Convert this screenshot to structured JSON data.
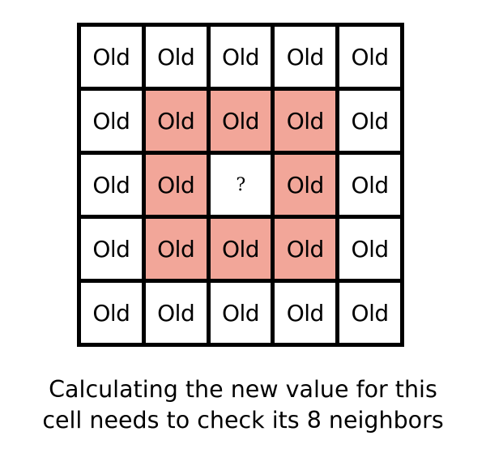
{
  "grid": {
    "rows": [
      [
        "Old",
        "Old",
        "Old",
        "Old",
        "Old"
      ],
      [
        "Old",
        "Old",
        "Old",
        "Old",
        "Old"
      ],
      [
        "Old",
        "Old",
        "?",
        "Old",
        "Old"
      ],
      [
        "Old",
        "Old",
        "Old",
        "Old",
        "Old"
      ],
      [
        "Old",
        "Old",
        "Old",
        "Old",
        "Old"
      ]
    ],
    "target_cell": {
      "row": 2,
      "col": 2
    },
    "colors": {
      "neighbor": "#f2a699",
      "normal": "#ffffff",
      "border": "#000000"
    }
  },
  "caption": {
    "line1": "Calculating the new value for this",
    "line2": "cell needs to check its 8 neighbors"
  }
}
